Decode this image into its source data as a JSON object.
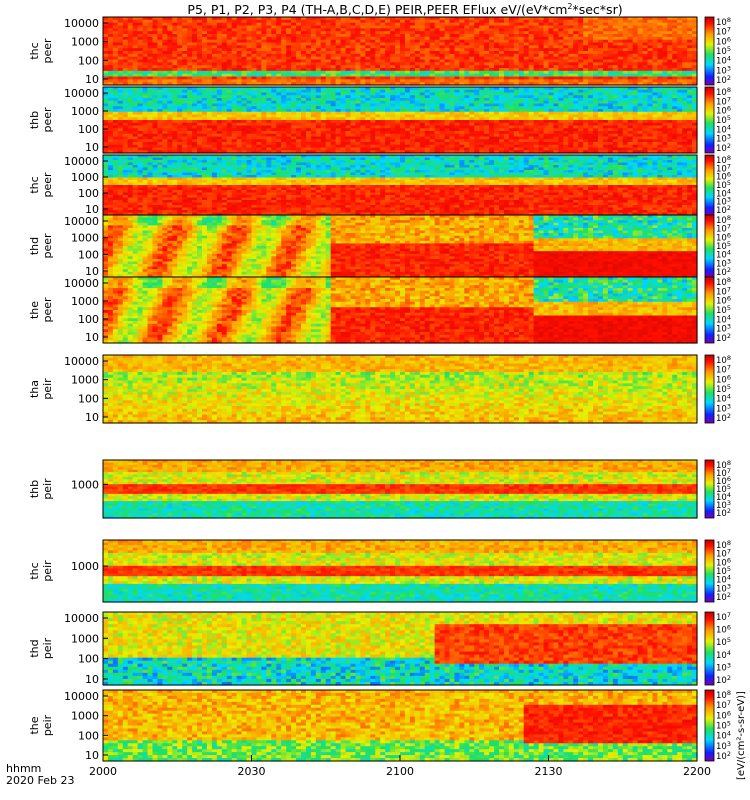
{
  "figure": {
    "title": "P5, P1, P2, P3, P4 (TH-A,B,C,D,E) PEIR,PEER EFlux eV/(eV*cm^2*sec*sr)",
    "title_parts": {
      "main": "P5, P1, P2, P3, P4 (TH-A,B,C,D,E) PEIR,PEER EFlux eV/(eV*cm",
      "sup": "2",
      "tail": "*sec*sr)"
    },
    "xaxis_units": "hhmm",
    "date_label": "2020 Feb 23",
    "colorbar_unit_label": "[eV/(cm²-s-sr-eV)]",
    "colors": {
      "background": "#ffffff",
      "axis": "#000000"
    }
  },
  "chart_data": {
    "type": "heatmap",
    "x_ticks": [
      "2000",
      "2030",
      "2100",
      "2130",
      "2200"
    ],
    "panels": [
      {
        "probe": "thc",
        "instrument": "peer",
        "y_ticks": [
          "10000",
          "1000",
          "100",
          "10"
        ],
        "cbar_ticks": [
          "10^8",
          "10^7",
          "10^6",
          "10^5",
          "10^4",
          "10^3",
          "10^2"
        ],
        "style": "peer_c"
      },
      {
        "probe": "thb",
        "instrument": "peer",
        "y_ticks": [
          "10000",
          "1000",
          "100",
          "10"
        ],
        "cbar_ticks": [
          "10^8",
          "10^7",
          "10^6",
          "10^5",
          "10^4",
          "10^3",
          "10^2"
        ],
        "style": "peer_b"
      },
      {
        "probe": "thc",
        "instrument": "peer",
        "y_ticks": [
          "10000",
          "1000",
          "100",
          "10"
        ],
        "cbar_ticks": [
          "10^8",
          "10^7",
          "10^6",
          "10^5",
          "10^4",
          "10^3",
          "10^2"
        ],
        "style": "peer_b"
      },
      {
        "probe": "thd",
        "instrument": "peer",
        "y_ticks": [
          "10000",
          "1000",
          "100",
          "10"
        ],
        "cbar_ticks": [
          "10^8",
          "10^7",
          "10^6",
          "10^5",
          "10^4",
          "10^3",
          "10^2"
        ],
        "style": "peer_d"
      },
      {
        "probe": "the",
        "instrument": "peer",
        "y_ticks": [
          "10000",
          "1000",
          "100",
          "10"
        ],
        "cbar_ticks": [
          "10^8",
          "10^7",
          "10^6",
          "10^5",
          "10^4",
          "10^3",
          "10^2"
        ],
        "style": "peer_d"
      },
      {
        "probe": "tha",
        "instrument": "peir",
        "y_ticks": [
          "10000",
          "1000",
          "100",
          "10"
        ],
        "cbar_ticks": [
          "10^8",
          "10^7",
          "10^6",
          "10^5",
          "10^4",
          "10^3",
          "10^2"
        ],
        "style": "peir_a"
      },
      {
        "probe": "thb",
        "instrument": "peir",
        "y_ticks": [
          "1000"
        ],
        "cbar_ticks": [
          "10^8",
          "10^7",
          "10^6",
          "10^5",
          "10^4",
          "10^3",
          "10^2"
        ],
        "style": "peir_b"
      },
      {
        "probe": "thc",
        "instrument": "peir",
        "y_ticks": [
          "1000"
        ],
        "cbar_ticks": [
          "10^8",
          "10^7",
          "10^6",
          "10^5",
          "10^4",
          "10^3",
          "10^2"
        ],
        "style": "peir_b"
      },
      {
        "probe": "thd",
        "instrument": "peir",
        "y_ticks": [
          "10000",
          "1000",
          "100",
          "10"
        ],
        "cbar_ticks": [
          "10^7",
          "10^6",
          "10^5",
          "10^4",
          "10^3",
          "10^2"
        ],
        "style": "peir_d"
      },
      {
        "probe": "the",
        "instrument": "peir",
        "y_ticks": [
          "10000",
          "1000",
          "100",
          "10"
        ],
        "cbar_ticks": [
          "10^8",
          "10^7",
          "10^6",
          "10^5",
          "10^4",
          "10^3",
          "10^2"
        ],
        "style": "peir_e"
      }
    ]
  }
}
